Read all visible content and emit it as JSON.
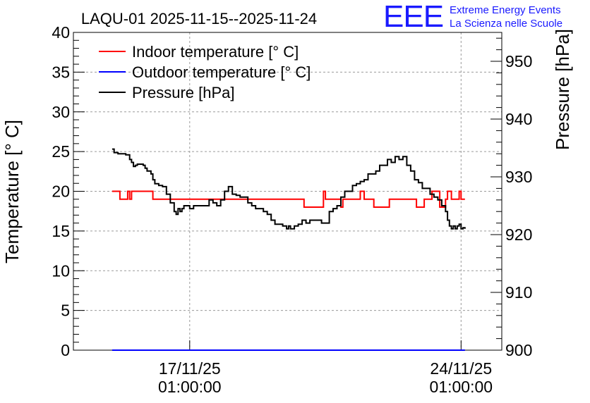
{
  "chart_data": {
    "type": "line",
    "title": "LAQU-01 2025-11-15--2025-11-24",
    "ylabel": "Temperature [° C]",
    "y2label": "Pressure [hPa]",
    "ylim": [
      0,
      40
    ],
    "y2lim": [
      900,
      955
    ],
    "yticks": [
      "0",
      "5",
      "10",
      "15",
      "20",
      "25",
      "30",
      "35",
      "40"
    ],
    "y2ticks": [
      "900",
      "910",
      "920",
      "930",
      "940",
      "950"
    ],
    "xtick_labels": [
      {
        "date": "17/11/25",
        "time": "01:00:00",
        "day": 2.0
      },
      {
        "date": "24/11/25",
        "time": "01:00:00",
        "day": 9.0
      }
    ],
    "xlim_days": [
      -1.0,
      10.05
    ],
    "grid": true,
    "legend_position": "top-left",
    "series": [
      {
        "name": "Indoor temperature [° C]",
        "color": "#ff0000",
        "axis": "left",
        "x": [
          0.0,
          0.1,
          0.2,
          0.35,
          0.4,
          0.45,
          0.5,
          1.0,
          1.05,
          4.9,
          4.95,
          5.35,
          5.45,
          5.5,
          5.55,
          5.9,
          5.95,
          6.3,
          6.4,
          6.45,
          6.5,
          6.7,
          6.75,
          7.1,
          7.15,
          7.8,
          7.85,
          8.0,
          8.05,
          8.2,
          8.25,
          8.35,
          8.45,
          8.55,
          8.6,
          8.65,
          8.75,
          8.85,
          8.95,
          9.0,
          9.05,
          9.1
        ],
        "values": [
          20,
          20,
          19,
          19,
          20,
          19,
          20,
          20,
          19,
          19,
          18,
          18,
          20,
          19,
          19,
          18,
          19,
          19,
          20,
          20,
          19,
          19,
          18,
          18,
          19,
          19,
          18,
          18,
          19,
          19,
          20,
          20,
          18,
          18,
          19,
          20,
          19,
          19,
          20,
          19,
          19,
          19
        ]
      },
      {
        "name": "Outdoor temperature [° C]",
        "color": "#0000ff",
        "axis": "left",
        "x": [
          0.0,
          9.1
        ],
        "values": [
          0,
          0
        ]
      },
      {
        "name": "Pressure [hPa]",
        "color": "#000000",
        "axis": "right",
        "x": [
          0.0,
          0.05,
          0.15,
          0.25,
          0.35,
          0.45,
          0.5,
          0.55,
          0.6,
          0.65,
          0.7,
          0.75,
          0.8,
          0.85,
          0.9,
          1.0,
          1.05,
          1.1,
          1.2,
          1.3,
          1.4,
          1.5,
          1.6,
          1.65,
          1.7,
          1.75,
          1.8,
          1.85,
          1.9,
          2.0,
          2.1,
          2.2,
          2.3,
          2.4,
          2.5,
          2.6,
          2.7,
          2.8,
          2.9,
          3.0,
          3.1,
          3.2,
          3.3,
          3.4,
          3.5,
          3.6,
          3.7,
          3.8,
          3.9,
          4.0,
          4.1,
          4.2,
          4.3,
          4.4,
          4.45,
          4.5,
          4.55,
          4.6,
          4.7,
          4.8,
          4.9,
          5.0,
          5.1,
          5.2,
          5.3,
          5.4,
          5.5,
          5.6,
          5.7,
          5.8,
          5.9,
          6.0,
          6.1,
          6.2,
          6.3,
          6.4,
          6.5,
          6.6,
          6.7,
          6.8,
          6.9,
          7.0,
          7.1,
          7.2,
          7.3,
          7.4,
          7.5,
          7.6,
          7.7,
          7.8,
          7.9,
          8.0,
          8.1,
          8.2,
          8.3,
          8.4,
          8.5,
          8.6,
          8.65,
          8.7,
          8.75,
          8.8,
          8.85,
          8.9,
          8.95,
          9.0,
          9.05,
          9.1
        ],
        "values": [
          934.8,
          934.2,
          934.0,
          934.0,
          933.8,
          933.0,
          932.5,
          931.8,
          932.0,
          932.2,
          932.2,
          932.2,
          932.0,
          931.5,
          931.0,
          930.5,
          929.5,
          928.8,
          928.5,
          928.3,
          927.0,
          925.5,
          924.0,
          923.5,
          924.5,
          924.0,
          924.5,
          925.0,
          925.0,
          924.5,
          925.0,
          925.0,
          925.0,
          925.0,
          926.0,
          925.5,
          925.0,
          926.0,
          927.5,
          928.3,
          927.0,
          926.8,
          926.5,
          926.5,
          925.5,
          925.0,
          924.5,
          924.5,
          924.0,
          923.5,
          922.5,
          921.8,
          921.8,
          921.5,
          921.5,
          921.0,
          921.5,
          921.0,
          921.5,
          921.8,
          922.5,
          922.0,
          922.5,
          922.5,
          922.5,
          922.0,
          922.0,
          924.0,
          924.5,
          925.0,
          926.5,
          927.5,
          927.5,
          928.5,
          928.8,
          929.2,
          929.5,
          930.5,
          930.5,
          931.0,
          932.0,
          932.0,
          933.0,
          932.5,
          933.5,
          933.0,
          933.5,
          932.0,
          931.0,
          929.5,
          929.0,
          928.0,
          928.0,
          927.0,
          926.5,
          926.0,
          925.0,
          924.0,
          922.5,
          921.5,
          921.0,
          921.5,
          921.0,
          921.5,
          921.8,
          921.0,
          921.2,
          921.0
        ]
      }
    ]
  },
  "logo": {
    "mark": "EEE",
    "line1": "Extreme Energy Events",
    "line2": "La Scienza nelle Scuole"
  }
}
